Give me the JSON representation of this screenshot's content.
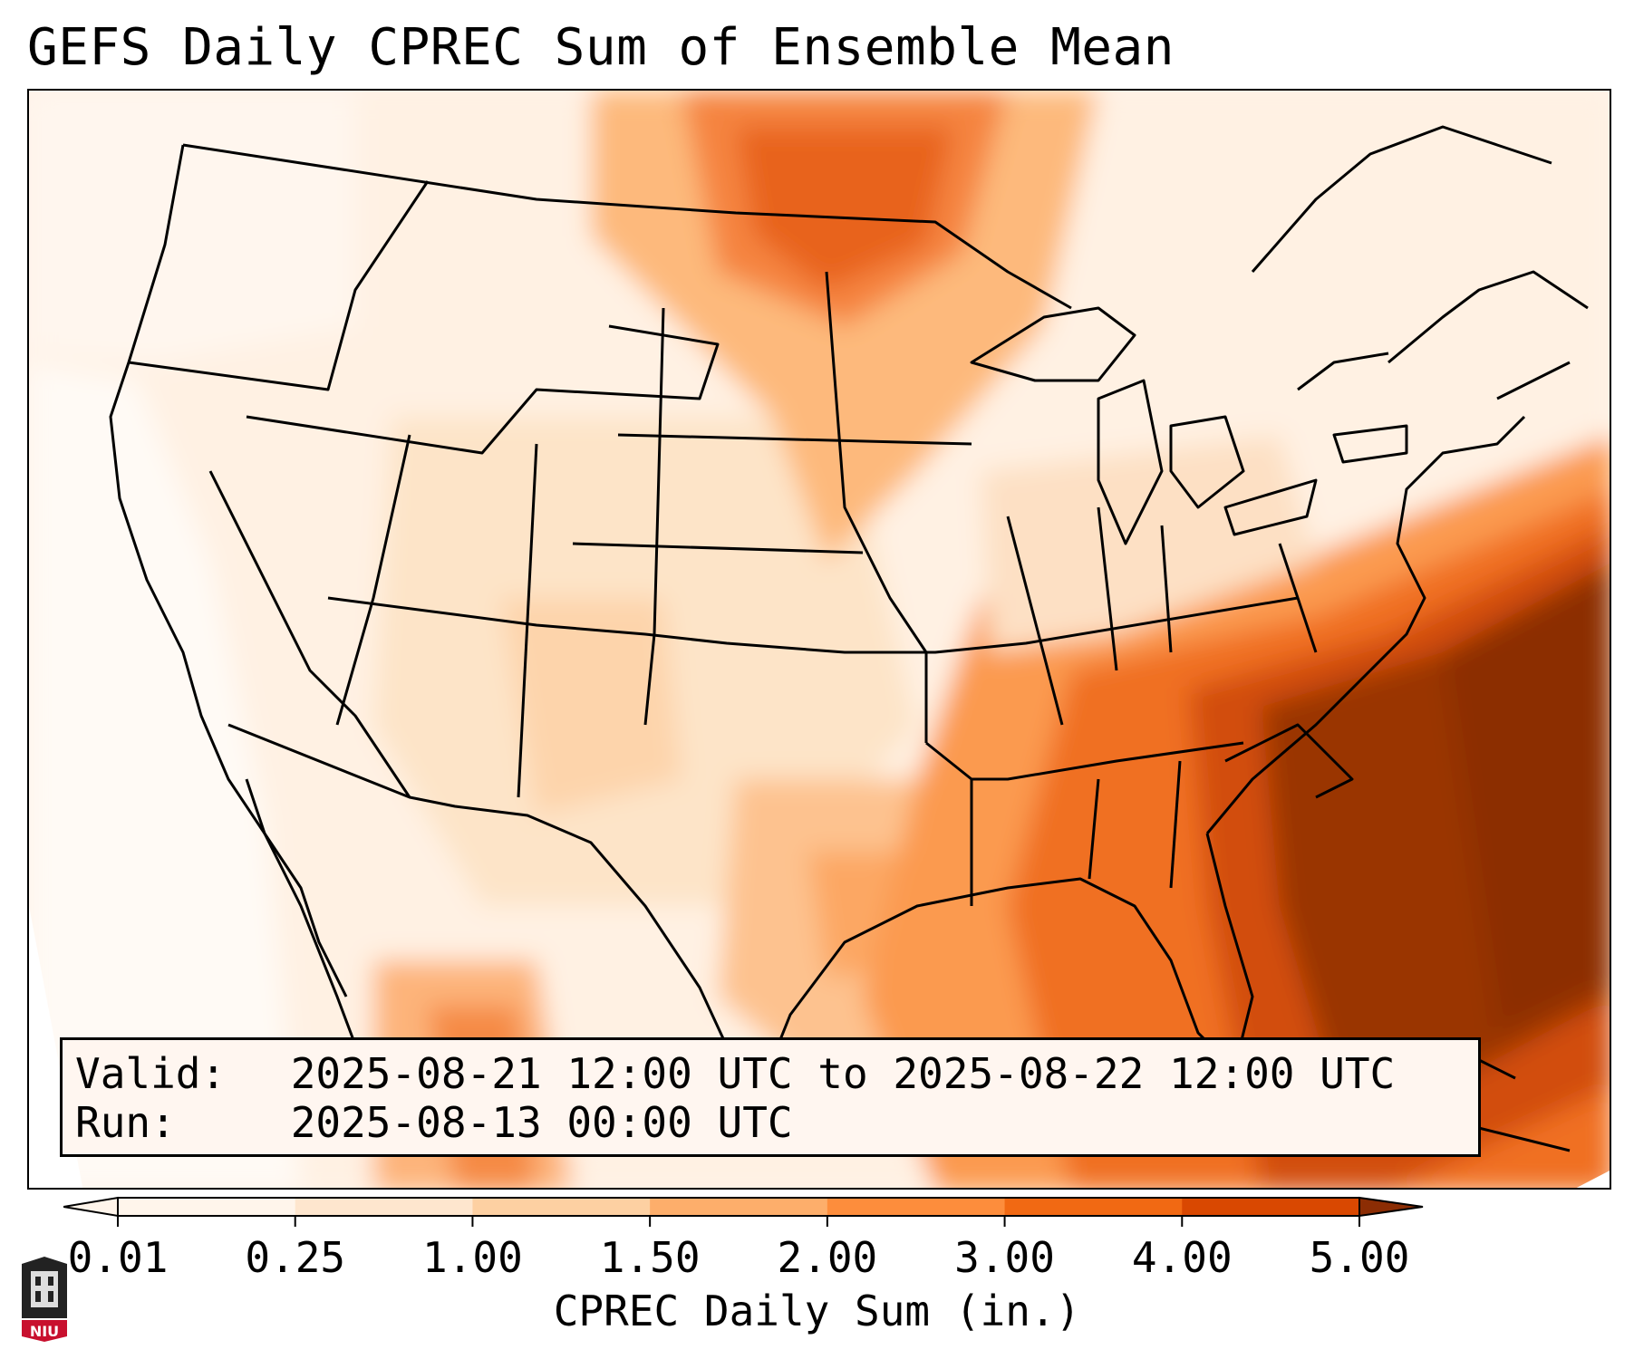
{
  "title": "GEFS Daily CPREC Sum of Ensemble Mean",
  "info": {
    "valid_label": "Valid:",
    "valid_value": "2025-08-21 12:00 UTC to 2025-08-22 12:00 UTC",
    "run_label": "Run:",
    "run_value": "2025-08-13 00:00 UTC"
  },
  "colorbar": {
    "label": "CPREC Daily Sum (in.)",
    "ticks": [
      "0.01",
      "0.25",
      "1.00",
      "1.50",
      "2.00",
      "3.00",
      "4.00",
      "5.00"
    ],
    "colors": [
      "#fff5eb",
      "#fee6ce",
      "#fdd0a2",
      "#fdae6b",
      "#fd8d3c",
      "#f16913",
      "#d94801",
      "#8c2d04"
    ]
  },
  "logo": {
    "text": "NIU",
    "icon": "niu-logo-icon",
    "color": "#c8102e"
  }
}
